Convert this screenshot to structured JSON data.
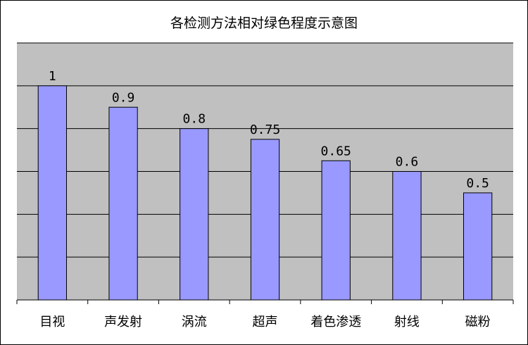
{
  "chart_data": {
    "type": "bar",
    "title": "各检测方法相对绿色程度示意图",
    "categories": [
      "目视",
      "声发射",
      "涡流",
      "超声",
      "着色渗透",
      "射线",
      "磁粉"
    ],
    "values": [
      1,
      0.9,
      0.8,
      0.75,
      0.65,
      0.6,
      0.5
    ],
    "data_labels": [
      "1",
      "0.9",
      "0.8",
      "0.75",
      "0.65",
      "0.6",
      "0.5"
    ],
    "xlabel": "",
    "ylabel": "",
    "ylim": [
      0,
      1.2
    ],
    "y_grid_step": 0.2,
    "grid": true,
    "legend": "none",
    "colors": {
      "plot_background": "#c0c0c0",
      "bar_fill": "#9999ff",
      "bar_stroke": "#000000",
      "grid": "#000000"
    }
  }
}
